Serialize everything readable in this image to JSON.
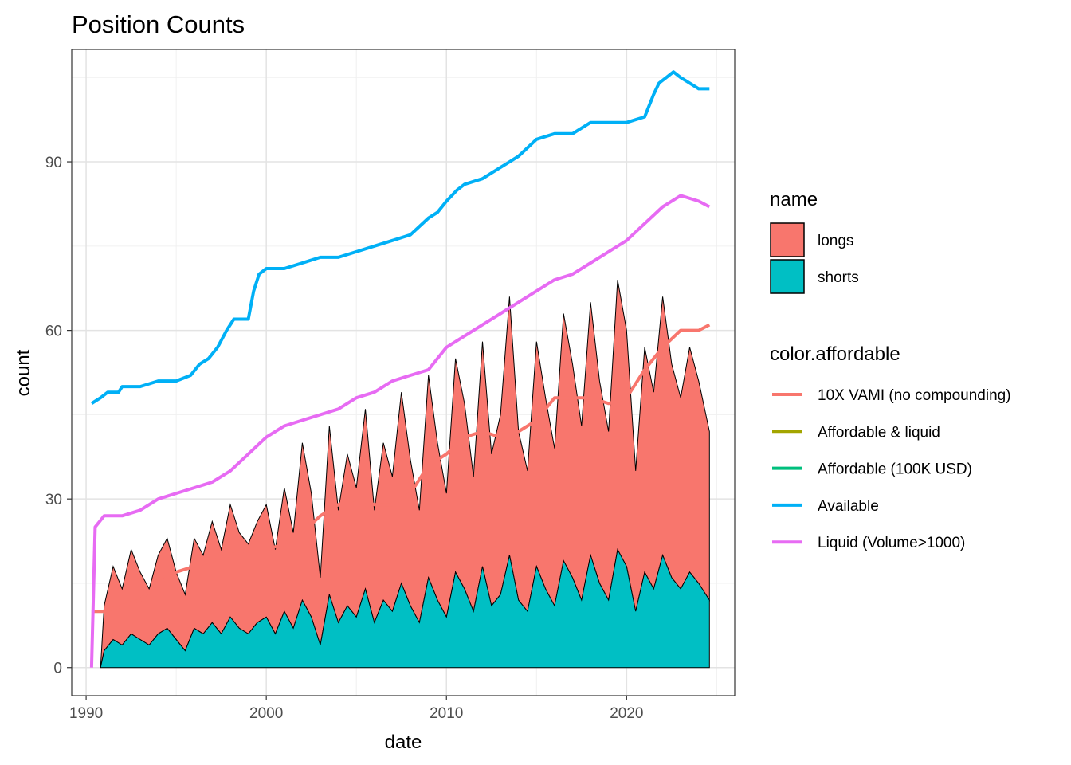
{
  "chart_data": {
    "type": "area",
    "title": "Position Counts",
    "xlabel": "date",
    "ylabel": "count",
    "xlim": [
      1989.2,
      2026.0
    ],
    "ylim": [
      -5,
      110
    ],
    "x_ticks": [
      1990,
      2000,
      2010,
      2020
    ],
    "y_ticks": [
      0,
      30,
      60,
      90
    ],
    "grid": true,
    "legend_placement": "right",
    "fill_legend": {
      "title": "name",
      "items": [
        {
          "label": "longs",
          "color": "#F8766D"
        },
        {
          "label": "shorts",
          "color": "#00BFC4"
        }
      ]
    },
    "color_legend": {
      "title": "color.affordable",
      "items": [
        {
          "label": "10X VAMI (no compounding)",
          "color": "#F8766D"
        },
        {
          "label": "Affordable & liquid",
          "color": "#A3A500"
        },
        {
          "label": "Affordable (100K USD)",
          "color": "#00BF7D"
        },
        {
          "label": "Available",
          "color": "#00B0F6"
        },
        {
          "label": "Liquid (Volume>1000)",
          "color": "#E76BF3"
        }
      ]
    },
    "series": [
      {
        "name": "Available",
        "color": "#00B0F6",
        "x": [
          1990.3,
          1990.8,
          1991.2,
          1991.8,
          1992.0,
          1993.0,
          1994.0,
          1995.0,
          1995.8,
          1996.3,
          1996.8,
          1997.3,
          1997.8,
          1998.2,
          1999.0,
          1999.3,
          1999.6,
          2000.0,
          2001.0,
          2002.0,
          2003.0,
          2004.0,
          2005.0,
          2006.0,
          2007.0,
          2008.0,
          2009.0,
          2009.5,
          2010.0,
          2010.6,
          2011.0,
          2012.0,
          2012.5,
          2013.0,
          2014.0,
          2015.0,
          2016.0,
          2017.0,
          2018.0,
          2019.0,
          2020.0,
          2021.0,
          2021.5,
          2021.8,
          2022.2,
          2022.6,
          2023.0,
          2023.5,
          2024.0,
          2024.6
        ],
        "y": [
          47,
          48,
          49,
          49,
          50,
          50,
          51,
          51,
          52,
          54,
          55,
          57,
          60,
          62,
          62,
          67,
          70,
          71,
          71,
          72,
          73,
          73,
          74,
          75,
          76,
          77,
          80,
          81,
          83,
          85,
          86,
          87,
          88,
          89,
          91,
          94,
          95,
          95,
          97,
          97,
          97,
          98,
          102,
          104,
          105,
          106,
          105,
          104,
          103,
          103
        ]
      },
      {
        "name": "Liquid (Volume>1000)",
        "color": "#E76BF3",
        "x": [
          1990.3,
          1990.5,
          1991.0,
          1992.0,
          1993.0,
          1994.0,
          1995.0,
          1996.0,
          1997.0,
          1998.0,
          1999.0,
          2000.0,
          2001.0,
          2002.0,
          2003.0,
          2004.0,
          2005.0,
          2006.0,
          2007.0,
          2008.0,
          2009.0,
          2010.0,
          2011.0,
          2012.0,
          2013.0,
          2014.0,
          2015.0,
          2016.0,
          2017.0,
          2018.0,
          2019.0,
          2020.0,
          2021.0,
          2022.0,
          2023.0,
          2024.0,
          2024.6
        ],
        "y": [
          0,
          25,
          27,
          27,
          28,
          30,
          31,
          32,
          33,
          35,
          38,
          41,
          43,
          44,
          45,
          46,
          48,
          49,
          51,
          52,
          53,
          57,
          59,
          61,
          63,
          65,
          67,
          69,
          70,
          72,
          74,
          76,
          79,
          82,
          84,
          83,
          82
        ]
      },
      {
        "name": "10X VAMI (no compounding)",
        "color": "#F8766D",
        "x": [
          1990.3,
          1991.0,
          1992.0,
          1993.0,
          1994.0,
          1995.0,
          1996.0,
          1997.0,
          1998.0,
          1999.0,
          2000.0,
          2001.0,
          2002.0,
          2003.0,
          2004.0,
          2005.0,
          2006.0,
          2007.0,
          2008.0,
          2009.0,
          2010.0,
          2011.0,
          2012.0,
          2013.0,
          2014.0,
          2015.0,
          2016.0,
          2017.0,
          2018.0,
          2019.0,
          2020.0,
          2021.0,
          2022.0,
          2023.0,
          2024.0,
          2024.6
        ],
        "y": [
          10,
          10,
          11,
          12,
          15,
          17,
          18,
          19,
          20,
          21,
          21,
          22,
          24,
          27,
          29,
          30,
          29,
          29,
          31,
          36,
          38,
          41,
          42,
          41,
          42,
          44,
          48,
          48,
          48,
          47,
          48,
          53,
          57,
          60,
          60,
          61
        ]
      },
      {
        "name": "longs",
        "color": "#F8766D",
        "x": [
          1990.8,
          1991.0,
          1991.5,
          1992.0,
          1992.5,
          1993.0,
          1993.5,
          1994.0,
          1994.5,
          1995.0,
          1995.5,
          1996.0,
          1996.5,
          1997.0,
          1997.5,
          1998.0,
          1998.5,
          1999.0,
          1999.5,
          2000.0,
          2000.5,
          2001.0,
          2001.5,
          2002.0,
          2002.5,
          2003.0,
          2003.5,
          2004.0,
          2004.5,
          2005.0,
          2005.5,
          2006.0,
          2006.5,
          2007.0,
          2007.5,
          2008.0,
          2008.5,
          2009.0,
          2009.5,
          2010.0,
          2010.5,
          2011.0,
          2011.5,
          2012.0,
          2012.5,
          2013.0,
          2013.5,
          2014.0,
          2014.5,
          2015.0,
          2015.5,
          2016.0,
          2016.5,
          2017.0,
          2017.5,
          2018.0,
          2018.5,
          2019.0,
          2019.5,
          2020.0,
          2020.5,
          2021.0,
          2021.5,
          2022.0,
          2022.5,
          2023.0,
          2023.5,
          2024.0,
          2024.6
        ],
        "y": [
          0,
          8,
          13,
          10,
          15,
          12,
          10,
          14,
          16,
          12,
          10,
          16,
          14,
          18,
          15,
          20,
          17,
          16,
          18,
          20,
          15,
          22,
          17,
          28,
          22,
          12,
          30,
          20,
          27,
          23,
          32,
          20,
          28,
          24,
          34,
          26,
          20,
          36,
          28,
          22,
          38,
          33,
          24,
          40,
          27,
          32,
          46,
          30,
          25,
          40,
          34,
          28,
          44,
          38,
          31,
          45,
          36,
          30,
          48,
          42,
          25,
          40,
          35,
          46,
          38,
          34,
          40,
          36,
          30
        ]
      },
      {
        "name": "shorts",
        "color": "#00BFC4",
        "x": [
          1990.8,
          1991.0,
          1991.5,
          1992.0,
          1992.5,
          1993.0,
          1993.5,
          1994.0,
          1994.5,
          1995.0,
          1995.5,
          1996.0,
          1996.5,
          1997.0,
          1997.5,
          1998.0,
          1998.5,
          1999.0,
          1999.5,
          2000.0,
          2000.5,
          2001.0,
          2001.5,
          2002.0,
          2002.5,
          2003.0,
          2003.5,
          2004.0,
          2004.5,
          2005.0,
          2005.5,
          2006.0,
          2006.5,
          2007.0,
          2007.5,
          2008.0,
          2008.5,
          2009.0,
          2009.5,
          2010.0,
          2010.5,
          2011.0,
          2011.5,
          2012.0,
          2012.5,
          2013.0,
          2013.5,
          2014.0,
          2014.5,
          2015.0,
          2015.5,
          2016.0,
          2016.5,
          2017.0,
          2017.5,
          2018.0,
          2018.5,
          2019.0,
          2019.5,
          2020.0,
          2020.5,
          2021.0,
          2021.5,
          2022.0,
          2022.5,
          2023.0,
          2023.5,
          2024.0,
          2024.6
        ],
        "y": [
          0,
          3,
          5,
          4,
          6,
          5,
          4,
          6,
          7,
          5,
          3,
          7,
          6,
          8,
          6,
          9,
          7,
          6,
          8,
          9,
          6,
          10,
          7,
          12,
          9,
          4,
          13,
          8,
          11,
          9,
          14,
          8,
          12,
          10,
          15,
          11,
          8,
          16,
          12,
          9,
          17,
          14,
          10,
          18,
          11,
          13,
          20,
          12,
          10,
          18,
          14,
          11,
          19,
          16,
          12,
          20,
          15,
          12,
          21,
          18,
          10,
          17,
          14,
          20,
          16,
          14,
          17,
          15,
          12
        ]
      }
    ]
  }
}
